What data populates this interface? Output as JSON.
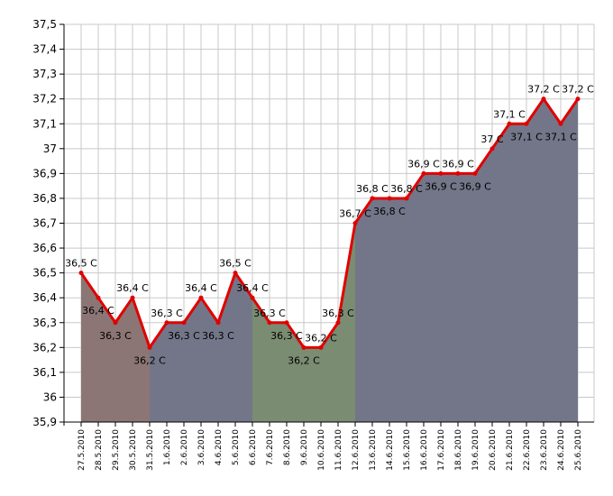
{
  "chart_data": {
    "type": "line",
    "categories": [
      "27.5.2010",
      "28.5.2010",
      "29.5.2010",
      "30.5.2010",
      "31.5.2010",
      "1.6.2010",
      "2.6.2010",
      "3.6.2010",
      "4.6.2010",
      "5.6.2010",
      "6.6.2010",
      "7.6.2010",
      "8.6.2010",
      "9.6.2010",
      "10.6.2010",
      "11.6.2010",
      "12.6.2010",
      "13.6.2010",
      "14.6.2010",
      "15.6.2010",
      "16.6.2010",
      "17.6.2010",
      "18.6.2010",
      "19.6.2010",
      "20.6.2010",
      "21.6.2010",
      "22.6.2010",
      "23.6.2010",
      "24.6.2010",
      "25.6.2010"
    ],
    "values": [
      36.5,
      36.4,
      36.3,
      36.4,
      36.2,
      36.3,
      36.3,
      36.4,
      36.3,
      36.5,
      36.4,
      36.3,
      36.3,
      36.2,
      36.2,
      36.3,
      36.7,
      36.8,
      36.8,
      36.8,
      36.9,
      36.9,
      36.9,
      36.9,
      37.0,
      37.1,
      37.1,
      37.2,
      37.1,
      37.2
    ],
    "point_labels": [
      "36,5 C",
      "36,4 C",
      "36,3 C",
      "36,4 C",
      "36,2 C",
      "36,3 C",
      "36,3 C",
      "36,4 C",
      "36,3 C",
      "36,5 C",
      "36,4 C",
      "36,3 C",
      "36,3 C",
      "36,2 C",
      "36,2 C",
      "36,3 C",
      "36,7 C",
      "36,8 C",
      "36,8 C",
      "36,8 C",
      "36,9 C",
      "36,9 C",
      "36,9 C",
      "36,9 C",
      "37 C",
      "37,1 C",
      "37,1 C",
      "37,2 C",
      "37,1 C",
      "37,2 C"
    ],
    "ylim": [
      35.9,
      37.5
    ],
    "ytick_values": [
      35.9,
      36.0,
      36.1,
      36.2,
      36.3,
      36.4,
      36.5,
      36.6,
      36.7,
      36.8,
      36.9,
      37.0,
      37.1,
      37.2,
      37.3,
      37.4,
      37.5
    ],
    "ytick_labels": [
      "35,9",
      "36",
      "36,1",
      "36,2",
      "36,3",
      "36,4",
      "36,5",
      "36,6",
      "36,7",
      "36,8",
      "36,9",
      "37",
      "37,1",
      "37,2",
      "37,3",
      "37,4",
      "37,5"
    ],
    "grid": true,
    "area_segments": [
      {
        "from": 0,
        "to": 4,
        "color": "#8b7575"
      },
      {
        "from": 4,
        "to": 10,
        "color": "#737688"
      },
      {
        "from": 10,
        "to": 16,
        "color": "#7a8c72"
      },
      {
        "from": 16,
        "to": 29,
        "color": "#737688"
      }
    ],
    "line_color": "#e00000",
    "marker_color": "#e00000",
    "plot_background": "#ffffff",
    "grid_color": "#c8c8c8"
  }
}
